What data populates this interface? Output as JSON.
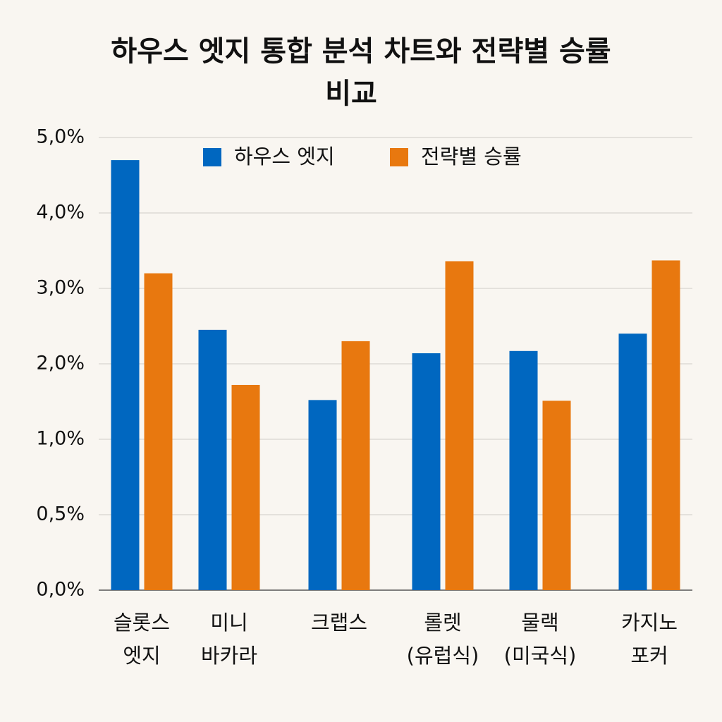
{
  "chart_data": {
    "type": "bar",
    "title": [
      "하우스 엣지 통합 분석 차트와 전략별 승률",
      "비교"
    ],
    "categories": [
      [
        "슬롯스",
        "엣지"
      ],
      [
        "미니",
        "바카라"
      ],
      [
        "크랩스"
      ],
      [
        "롤렛",
        "(유럽식)"
      ],
      [
        "물랙",
        "(미국식)"
      ],
      [
        "카지노",
        "포커"
      ]
    ],
    "series": [
      {
        "name": "하우스 엣지",
        "color": "#0067c0",
        "values": [
          4.7,
          2.45,
          1.52,
          2.14,
          2.17,
          2.4
        ]
      },
      {
        "name": "전략별 승률",
        "color": "#e8780f",
        "values": [
          3.2,
          1.72,
          2.3,
          3.36,
          1.51,
          3.37
        ]
      }
    ],
    "ylim": [
      0,
      5
    ],
    "yticks": [
      {
        "value": 0,
        "label": "0,0%"
      },
      {
        "value": 0.5,
        "label": "0,5%"
      },
      {
        "value": 1,
        "label": "1,0%"
      },
      {
        "value": 2,
        "label": "2,0%"
      },
      {
        "value": 3,
        "label": "3,0%"
      },
      {
        "value": 4,
        "label": "4,0%"
      },
      {
        "value": 5,
        "label": "5,0%"
      }
    ],
    "grid": true
  }
}
